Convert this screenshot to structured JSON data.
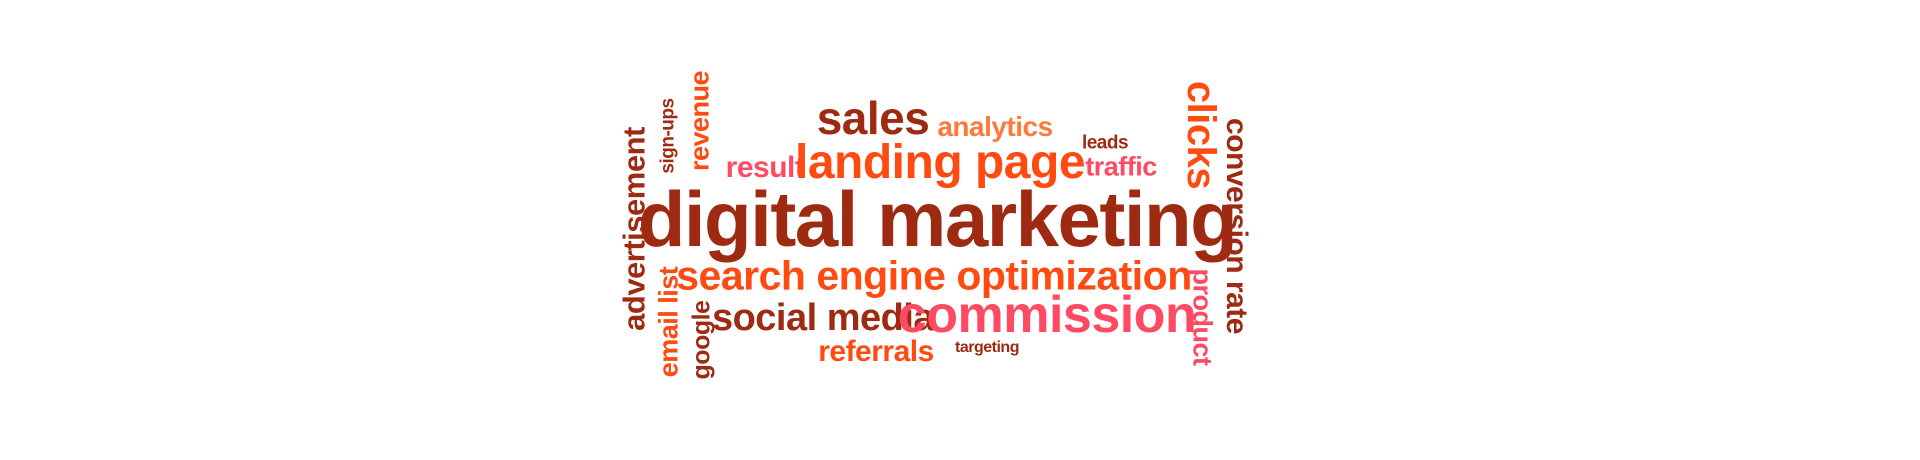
{
  "palette": {
    "dark_red": "#9e2a12",
    "orange": "#ff4a12",
    "light_orange": "#ff7a3a",
    "pink": "#ff4a63"
  },
  "words": {
    "digital_marketing": "digital marketing",
    "landing_page": "landing page",
    "sales": "sales",
    "analytics": "analytics",
    "leads": "leads",
    "traffic": "traffic",
    "result": "result",
    "search_engine_optimization": "search engine optimization",
    "social_media": "social media",
    "commission": "commission",
    "referrals": "referrals",
    "targeting": "targeting",
    "advertisement": "advertisement",
    "sign_ups": "sign-ups",
    "revenue": "revenue",
    "email_list": "email list",
    "google": "google",
    "clicks": "clicks",
    "conversion_rate": "conversion rate",
    "product": "product"
  }
}
